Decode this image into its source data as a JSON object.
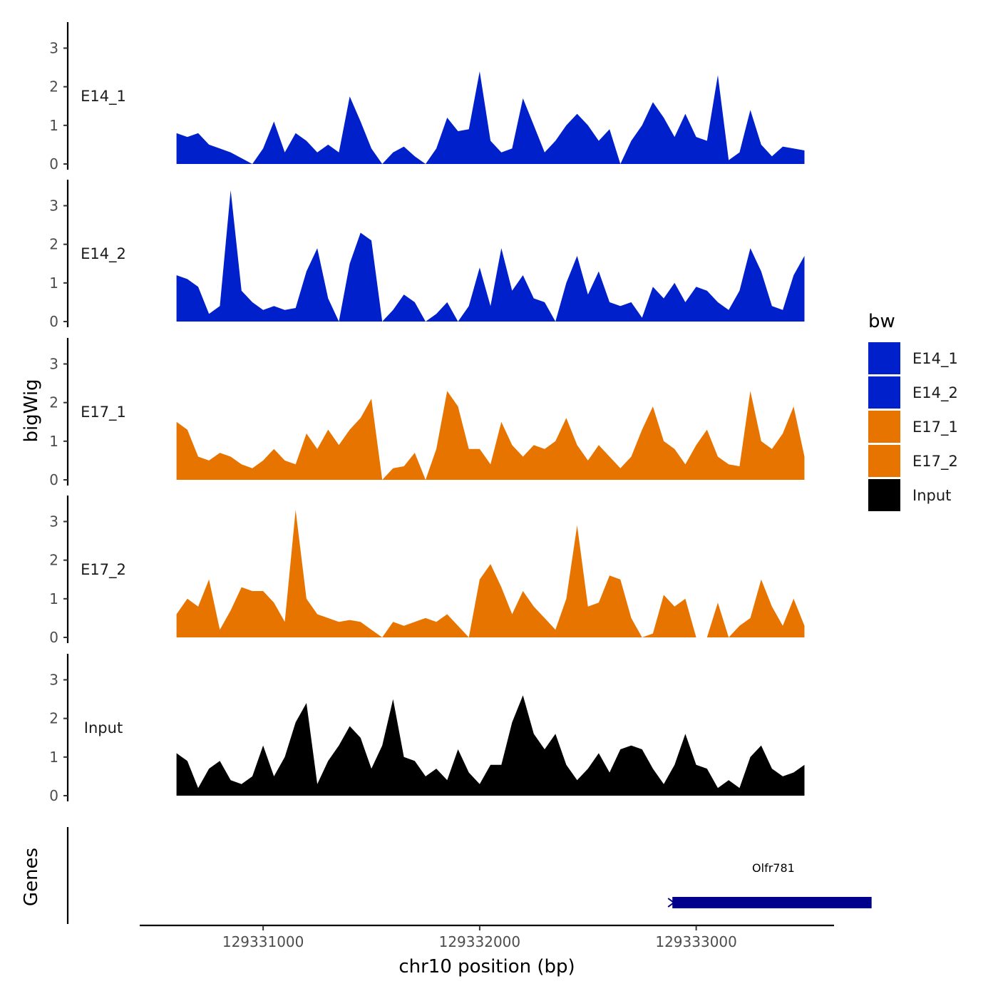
{
  "chart_data": {
    "type": "area",
    "title": "",
    "xlabel": "chr10 position (bp)",
    "ylabel": "bigWig",
    "genes_label": "Genes",
    "xlim": [
      129330430,
      129333630
    ],
    "ylim": [
      0,
      3.6
    ],
    "x_ticks": [
      {
        "value": 129331000,
        "label": "129331000"
      },
      {
        "value": 129332000,
        "label": "129332000"
      },
      {
        "value": 129333000,
        "label": "129333000"
      }
    ],
    "y_ticks": [
      {
        "value": 0,
        "label": "0"
      },
      {
        "value": 1,
        "label": "1"
      },
      {
        "value": 2,
        "label": "2"
      },
      {
        "value": 3,
        "label": "3"
      }
    ],
    "legend": {
      "title": "bw",
      "position": "right",
      "entries": [
        {
          "label": "E14_1",
          "color": "#0020CC"
        },
        {
          "label": "E14_2",
          "color": "#0020CC"
        },
        {
          "label": "E17_1",
          "color": "#E87400"
        },
        {
          "label": "E17_2",
          "color": "#E87400"
        },
        {
          "label": "Input",
          "color": "#000000"
        }
      ]
    },
    "series": [
      {
        "name": "E14_1",
        "color": "#0020CC",
        "x": [
          129330600,
          129330650,
          129330700,
          129330750,
          129330800,
          129330850,
          129330900,
          129330950,
          129331000,
          129331050,
          129331100,
          129331150,
          129331200,
          129331250,
          129331300,
          129331350,
          129331400,
          129331450,
          129331500,
          129331550,
          129331600,
          129331650,
          129331700,
          129331750,
          129331800,
          129331850,
          129331900,
          129331950,
          129332000,
          129332050,
          129332100,
          129332150,
          129332200,
          129332250,
          129332300,
          129332350,
          129332400,
          129332450,
          129332500,
          129332550,
          129332600,
          129332650,
          129332700,
          129332750,
          129332800,
          129332850,
          129332900,
          129332950,
          129333000,
          129333050,
          129333100,
          129333150,
          129333200,
          129333250,
          129333300,
          129333350,
          129333400,
          129333450,
          129333500
        ],
        "values": [
          0.8,
          0.7,
          0.8,
          0.5,
          0.4,
          0.3,
          0.15,
          0.0,
          0.4,
          1.1,
          0.3,
          0.8,
          0.6,
          0.3,
          0.5,
          0.3,
          1.75,
          1.1,
          0.4,
          0.0,
          0.3,
          0.45,
          0.2,
          0.0,
          0.4,
          1.2,
          0.85,
          0.9,
          2.4,
          0.6,
          0.3,
          0.4,
          1.7,
          1.0,
          0.3,
          0.6,
          1.0,
          1.3,
          1.0,
          0.6,
          0.9,
          0.0,
          0.6,
          1.0,
          1.6,
          1.2,
          0.7,
          1.3,
          0.7,
          0.6,
          2.3,
          0.1,
          0.3,
          1.4,
          0.5,
          0.2,
          0.45,
          0.4,
          0.35
        ]
      },
      {
        "name": "E14_2",
        "color": "#0020CC",
        "x": [
          129330600,
          129330650,
          129330700,
          129330750,
          129330800,
          129330850,
          129330900,
          129330950,
          129331000,
          129331050,
          129331100,
          129331150,
          129331200,
          129331250,
          129331300,
          129331350,
          129331400,
          129331450,
          129331500,
          129331550,
          129331600,
          129331650,
          129331700,
          129331750,
          129331800,
          129331850,
          129331900,
          129331950,
          129332000,
          129332050,
          129332100,
          129332150,
          129332200,
          129332250,
          129332300,
          129332350,
          129332400,
          129332450,
          129332500,
          129332550,
          129332600,
          129332650,
          129332700,
          129332750,
          129332800,
          129332850,
          129332900,
          129332950,
          129333000,
          129333050,
          129333100,
          129333150,
          129333200,
          129333250,
          129333300,
          129333350,
          129333400,
          129333450,
          129333500
        ],
        "values": [
          1.2,
          1.1,
          0.9,
          0.2,
          0.4,
          3.4,
          0.8,
          0.5,
          0.3,
          0.4,
          0.3,
          0.35,
          1.3,
          1.9,
          0.6,
          0.0,
          1.5,
          2.3,
          2.1,
          0.0,
          0.3,
          0.7,
          0.5,
          0.0,
          0.2,
          0.5,
          0.0,
          0.4,
          1.4,
          0.4,
          1.9,
          0.8,
          1.2,
          0.6,
          0.5,
          0.0,
          1.0,
          1.7,
          0.7,
          1.3,
          0.5,
          0.4,
          0.5,
          0.1,
          0.9,
          0.6,
          1.0,
          0.5,
          0.9,
          0.8,
          0.5,
          0.3,
          0.8,
          1.9,
          1.3,
          0.4,
          0.3,
          1.2,
          1.7
        ]
      },
      {
        "name": "E17_1",
        "color": "#E87400",
        "x": [
          129330600,
          129330650,
          129330700,
          129330750,
          129330800,
          129330850,
          129330900,
          129330950,
          129331000,
          129331050,
          129331100,
          129331150,
          129331200,
          129331250,
          129331300,
          129331350,
          129331400,
          129331450,
          129331500,
          129331550,
          129331600,
          129331650,
          129331700,
          129331750,
          129331800,
          129331850,
          129331900,
          129331950,
          129332000,
          129332050,
          129332100,
          129332150,
          129332200,
          129332250,
          129332300,
          129332350,
          129332400,
          129332450,
          129332500,
          129332550,
          129332600,
          129332650,
          129332700,
          129332750,
          129332800,
          129332850,
          129332900,
          129332950,
          129333000,
          129333050,
          129333100,
          129333150,
          129333200,
          129333250,
          129333300,
          129333350,
          129333400,
          129333450,
          129333500
        ],
        "values": [
          1.5,
          1.3,
          0.6,
          0.5,
          0.7,
          0.6,
          0.4,
          0.3,
          0.5,
          0.8,
          0.5,
          0.4,
          1.2,
          0.8,
          1.3,
          0.9,
          1.3,
          1.6,
          2.1,
          0.0,
          0.3,
          0.35,
          0.7,
          0.0,
          0.8,
          2.3,
          1.9,
          0.8,
          0.8,
          0.4,
          1.5,
          0.9,
          0.6,
          0.9,
          0.8,
          1.0,
          1.6,
          0.9,
          0.5,
          0.9,
          0.6,
          0.3,
          0.6,
          1.3,
          1.9,
          1.0,
          0.8,
          0.4,
          0.9,
          1.3,
          0.6,
          0.4,
          0.35,
          2.3,
          1.0,
          0.8,
          1.2,
          1.9,
          0.6
        ]
      },
      {
        "name": "E17_2",
        "color": "#E87400",
        "x": [
          129330600,
          129330650,
          129330700,
          129330750,
          129330800,
          129330850,
          129330900,
          129330950,
          129331000,
          129331050,
          129331100,
          129331150,
          129331200,
          129331250,
          129331300,
          129331350,
          129331400,
          129331450,
          129331500,
          129331550,
          129331600,
          129331650,
          129331700,
          129331750,
          129331800,
          129331850,
          129331900,
          129331950,
          129332000,
          129332050,
          129332100,
          129332150,
          129332200,
          129332250,
          129332300,
          129332350,
          129332400,
          129332450,
          129332500,
          129332550,
          129332600,
          129332650,
          129332700,
          129332750,
          129332800,
          129332850,
          129332900,
          129332950,
          129333000,
          129333050,
          129333100,
          129333150,
          129333200,
          129333250,
          129333300,
          129333350,
          129333400,
          129333450,
          129333500
        ],
        "values": [
          0.6,
          1.0,
          0.8,
          1.5,
          0.2,
          0.7,
          1.3,
          1.2,
          1.2,
          0.9,
          0.4,
          3.3,
          1.0,
          0.6,
          0.5,
          0.4,
          0.45,
          0.4,
          0.2,
          0.0,
          0.4,
          0.3,
          0.4,
          0.5,
          0.4,
          0.6,
          0.3,
          0.0,
          1.5,
          1.9,
          1.3,
          0.6,
          1.2,
          0.8,
          0.5,
          0.2,
          1.0,
          2.9,
          0.8,
          0.9,
          1.6,
          1.5,
          0.5,
          0.0,
          0.1,
          1.1,
          0.8,
          1.0,
          0.0,
          0.0,
          0.9,
          0.0,
          0.3,
          0.5,
          1.5,
          0.8,
          0.3,
          1.0,
          0.3
        ]
      },
      {
        "name": "Input",
        "color": "#000000",
        "x": [
          129330600,
          129330650,
          129330700,
          129330750,
          129330800,
          129330850,
          129330900,
          129330950,
          129331000,
          129331050,
          129331100,
          129331150,
          129331200,
          129331250,
          129331300,
          129331350,
          129331400,
          129331450,
          129331500,
          129331550,
          129331600,
          129331650,
          129331700,
          129331750,
          129331800,
          129331850,
          129331900,
          129331950,
          129332000,
          129332050,
          129332100,
          129332150,
          129332200,
          129332250,
          129332300,
          129332350,
          129332400,
          129332450,
          129332500,
          129332550,
          129332600,
          129332650,
          129332700,
          129332750,
          129332800,
          129332850,
          129332900,
          129332950,
          129333000,
          129333050,
          129333100,
          129333150,
          129333200,
          129333250,
          129333300,
          129333350,
          129333400,
          129333450,
          129333500
        ],
        "values": [
          1.1,
          0.9,
          0.2,
          0.7,
          0.9,
          0.4,
          0.3,
          0.5,
          1.3,
          0.5,
          1.0,
          1.9,
          2.4,
          0.3,
          0.9,
          1.3,
          1.8,
          1.5,
          0.7,
          1.3,
          2.5,
          1.0,
          0.9,
          0.5,
          0.7,
          0.4,
          1.2,
          0.6,
          0.3,
          0.8,
          0.8,
          1.9,
          2.6,
          1.6,
          1.2,
          1.6,
          0.8,
          0.4,
          0.7,
          1.1,
          0.6,
          1.2,
          1.3,
          1.2,
          0.7,
          0.3,
          0.8,
          1.6,
          0.8,
          0.7,
          0.2,
          0.4,
          0.2,
          1.0,
          1.3,
          0.7,
          0.5,
          0.6,
          0.8
        ]
      }
    ],
    "genes": [
      {
        "name": "Olfr781",
        "start": 129332890,
        "end": 129333810,
        "strand": "-",
        "color": "#00008B"
      }
    ]
  }
}
